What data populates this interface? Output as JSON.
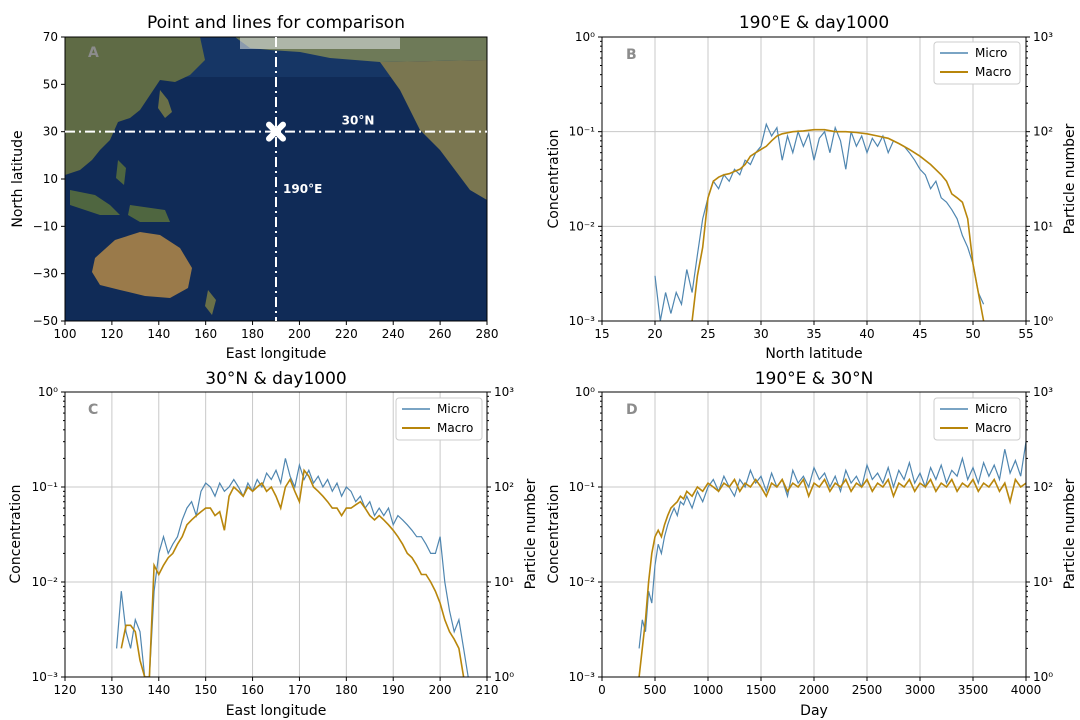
{
  "colors": {
    "micro": "#4f86b0",
    "macro": "#b8860b",
    "grid": "#c8c8c8",
    "panel_letter": "#8c8c8c",
    "ocean": "#0f2a55",
    "land": "#8a7a52"
  },
  "chart_data": [
    {
      "id": "A",
      "type": "map",
      "title": "Point and lines for comparison",
      "panel_letter": "A",
      "xlabel": "East longitude",
      "ylabel": "North latitude",
      "xlim": [
        100,
        280
      ],
      "ylim": [
        -50,
        70
      ],
      "xticks": [
        100,
        120,
        140,
        160,
        180,
        200,
        220,
        240,
        260,
        280
      ],
      "yticks": [
        -50,
        -30,
        -10,
        10,
        30,
        50,
        70
      ],
      "ytick_labels": [
        "−50",
        "−30",
        "−10",
        "10",
        "30",
        "50",
        "70"
      ],
      "vertical_line_lon": 190,
      "horizontal_line_lat": 30,
      "marker": [
        190,
        30
      ],
      "annotations": [
        {
          "text": "30°N",
          "lon": 218,
          "lat": 33
        },
        {
          "text": "190°E",
          "lon": 193,
          "lat": 4
        }
      ]
    },
    {
      "id": "B",
      "type": "line",
      "title": "190°E & day1000",
      "panel_letter": "B",
      "xlabel": "North latitude",
      "ylabel": "Concentration",
      "ylabel_right": "Particle number",
      "xlim": [
        15,
        55
      ],
      "xticks": [
        15,
        20,
        25,
        30,
        35,
        40,
        45,
        50,
        55
      ],
      "ylim": [
        0.001,
        1
      ],
      "yscale": "log",
      "left_tick_labels": [
        "10⁻³",
        "10⁻²",
        "10⁻¹",
        "10⁰"
      ],
      "right_tick_labels": [
        "10⁰",
        "10¹",
        "10²",
        "10³"
      ],
      "legend": [
        "Micro",
        "Macro"
      ],
      "legend_position": "top-right",
      "grid": true,
      "series": [
        {
          "name": "Micro",
          "x": [
            20,
            20.5,
            21,
            21.5,
            22,
            22.5,
            23,
            23.5,
            24,
            24.5,
            25,
            25.5,
            26,
            26.5,
            27,
            27.5,
            28,
            28.5,
            29,
            29.5,
            30,
            30.5,
            31,
            31.5,
            32,
            32.5,
            33,
            33.5,
            34,
            34.5,
            35,
            35.5,
            36,
            36.5,
            37,
            37.5,
            38,
            38.5,
            39,
            39.5,
            40,
            40.5,
            41,
            41.5,
            42,
            42.5,
            43,
            43.5,
            44,
            44.5,
            45,
            45.5,
            46,
            46.5,
            47,
            47.5,
            48,
            48.5,
            49,
            49.5,
            50,
            50.5,
            51
          ],
          "y": [
            0.003,
            0.001,
            0.002,
            0.0012,
            0.002,
            0.0015,
            0.0035,
            0.002,
            0.005,
            0.012,
            0.02,
            0.03,
            0.025,
            0.035,
            0.03,
            0.04,
            0.035,
            0.05,
            0.045,
            0.06,
            0.07,
            0.12,
            0.09,
            0.11,
            0.05,
            0.09,
            0.06,
            0.1,
            0.07,
            0.095,
            0.05,
            0.085,
            0.1,
            0.06,
            0.11,
            0.08,
            0.04,
            0.1,
            0.07,
            0.09,
            0.06,
            0.085,
            0.07,
            0.09,
            0.06,
            0.08,
            0.075,
            0.07,
            0.06,
            0.05,
            0.04,
            0.035,
            0.025,
            0.03,
            0.02,
            0.018,
            0.015,
            0.012,
            0.008,
            0.006,
            0.004,
            0.002,
            0.0015
          ]
        },
        {
          "name": "Macro",
          "x": [
            23.5,
            24,
            24.5,
            25,
            25.5,
            26,
            26.5,
            27,
            27.5,
            28,
            28.5,
            29,
            29.5,
            30,
            30.5,
            31,
            31.5,
            32,
            33,
            34,
            35,
            36,
            37,
            38,
            39,
            40,
            41,
            42,
            43,
            44,
            45,
            46,
            47,
            47.5,
            48,
            48.5,
            49,
            49.5,
            50,
            50.5,
            51
          ],
          "y": [
            0.001,
            0.003,
            0.006,
            0.02,
            0.03,
            0.033,
            0.035,
            0.036,
            0.038,
            0.04,
            0.045,
            0.055,
            0.06,
            0.065,
            0.07,
            0.08,
            0.09,
            0.095,
            0.1,
            0.102,
            0.105,
            0.105,
            0.1,
            0.1,
            0.098,
            0.095,
            0.09,
            0.085,
            0.075,
            0.065,
            0.055,
            0.045,
            0.035,
            0.03,
            0.022,
            0.02,
            0.018,
            0.012,
            0.004,
            0.002,
            0.001
          ]
        }
      ]
    },
    {
      "id": "C",
      "type": "line",
      "title": "30°N & day1000",
      "panel_letter": "C",
      "xlabel": "East longitude",
      "ylabel": "Concentration",
      "ylabel_right": "Particle number",
      "xlim": [
        120,
        210
      ],
      "xticks": [
        120,
        130,
        140,
        150,
        160,
        170,
        180,
        190,
        200,
        210
      ],
      "ylim": [
        0.001,
        1
      ],
      "yscale": "log",
      "left_tick_labels": [
        "10⁻³",
        "10⁻²",
        "10⁻¹",
        "10⁰"
      ],
      "right_tick_labels": [
        "10⁰",
        "10¹",
        "10²",
        "10³"
      ],
      "legend": [
        "Micro",
        "Macro"
      ],
      "legend_position": "top-right",
      "grid": true,
      "series": [
        {
          "name": "Micro",
          "x": [
            131,
            132,
            133,
            134,
            135,
            136,
            137,
            138,
            139,
            140,
            141,
            142,
            143,
            144,
            145,
            146,
            147,
            148,
            149,
            150,
            151,
            152,
            153,
            154,
            155,
            156,
            157,
            158,
            159,
            160,
            161,
            162,
            163,
            164,
            165,
            166,
            167,
            168,
            169,
            170,
            171,
            172,
            173,
            174,
            175,
            176,
            177,
            178,
            179,
            180,
            181,
            182,
            183,
            184,
            185,
            186,
            187,
            188,
            189,
            190,
            191,
            192,
            193,
            194,
            195,
            196,
            197,
            198,
            199,
            200,
            201,
            202,
            203,
            204,
            205,
            206
          ],
          "y": [
            0.002,
            0.008,
            0.003,
            0.002,
            0.004,
            0.003,
            0.001,
            0.001,
            0.008,
            0.02,
            0.03,
            0.02,
            0.025,
            0.03,
            0.045,
            0.06,
            0.07,
            0.05,
            0.09,
            0.11,
            0.1,
            0.08,
            0.11,
            0.09,
            0.1,
            0.12,
            0.1,
            0.08,
            0.11,
            0.09,
            0.12,
            0.1,
            0.14,
            0.12,
            0.15,
            0.11,
            0.2,
            0.13,
            0.1,
            0.17,
            0.12,
            0.15,
            0.11,
            0.13,
            0.1,
            0.12,
            0.09,
            0.11,
            0.08,
            0.1,
            0.09,
            0.07,
            0.08,
            0.06,
            0.07,
            0.05,
            0.06,
            0.05,
            0.06,
            0.04,
            0.05,
            0.045,
            0.04,
            0.035,
            0.03,
            0.03,
            0.025,
            0.02,
            0.02,
            0.03,
            0.01,
            0.005,
            0.003,
            0.004,
            0.002,
            0.001
          ]
        },
        {
          "name": "Macro",
          "x": [
            132,
            133,
            134,
            135,
            136,
            137,
            138,
            139,
            140,
            141,
            142,
            143,
            144,
            145,
            146,
            147,
            148,
            149,
            150,
            151,
            152,
            153,
            154,
            155,
            156,
            157,
            158,
            159,
            160,
            161,
            162,
            163,
            164,
            165,
            166,
            167,
            168,
            169,
            170,
            171,
            172,
            173,
            174,
            175,
            176,
            177,
            178,
            179,
            180,
            181,
            182,
            183,
            184,
            185,
            186,
            187,
            188,
            189,
            190,
            191,
            192,
            193,
            194,
            195,
            196,
            197,
            198,
            199,
            200,
            201,
            202,
            203,
            204,
            205
          ],
          "y": [
            0.002,
            0.0035,
            0.0035,
            0.003,
            0.0015,
            0.001,
            0.001,
            0.015,
            0.012,
            0.015,
            0.018,
            0.02,
            0.025,
            0.03,
            0.04,
            0.045,
            0.05,
            0.055,
            0.06,
            0.06,
            0.05,
            0.055,
            0.035,
            0.08,
            0.1,
            0.09,
            0.08,
            0.1,
            0.09,
            0.1,
            0.11,
            0.09,
            0.1,
            0.08,
            0.06,
            0.1,
            0.12,
            0.09,
            0.07,
            0.15,
            0.13,
            0.1,
            0.09,
            0.08,
            0.07,
            0.06,
            0.06,
            0.05,
            0.06,
            0.06,
            0.065,
            0.07,
            0.06,
            0.05,
            0.045,
            0.05,
            0.045,
            0.04,
            0.035,
            0.03,
            0.025,
            0.02,
            0.018,
            0.015,
            0.012,
            0.012,
            0.01,
            0.008,
            0.006,
            0.004,
            0.003,
            0.0025,
            0.002,
            0.001
          ]
        }
      ]
    },
    {
      "id": "D",
      "type": "line",
      "title": "190°E & 30°N",
      "panel_letter": "D",
      "xlabel": "Day",
      "ylabel": "Concentration",
      "ylabel_right": "Particle number",
      "xlim": [
        0,
        4000
      ],
      "xticks": [
        0,
        500,
        1000,
        1500,
        2000,
        2500,
        3000,
        3500,
        4000
      ],
      "ylim": [
        0.001,
        1
      ],
      "yscale": "log",
      "left_tick_labels": [
        "10⁻³",
        "10⁻²",
        "10⁻¹",
        "10⁰"
      ],
      "right_tick_labels": [
        "10⁰",
        "10¹",
        "10²",
        "10³"
      ],
      "legend": [
        "Micro",
        "Macro"
      ],
      "legend_position": "top-right",
      "grid": true,
      "series": [
        {
          "name": "Micro",
          "x": [
            350,
            380,
            410,
            440,
            470,
            500,
            530,
            560,
            590,
            620,
            650,
            680,
            710,
            740,
            770,
            800,
            850,
            900,
            950,
            1000,
            1050,
            1100,
            1150,
            1200,
            1250,
            1300,
            1350,
            1400,
            1450,
            1500,
            1550,
            1600,
            1650,
            1700,
            1750,
            1800,
            1850,
            1900,
            1950,
            2000,
            2050,
            2100,
            2150,
            2200,
            2250,
            2300,
            2350,
            2400,
            2450,
            2500,
            2550,
            2600,
            2650,
            2700,
            2750,
            2800,
            2850,
            2900,
            2950,
            3000,
            3050,
            3100,
            3150,
            3200,
            3250,
            3300,
            3350,
            3400,
            3450,
            3500,
            3550,
            3600,
            3650,
            3700,
            3750,
            3800,
            3850,
            3900,
            3950,
            4000
          ],
          "y": [
            0.002,
            0.004,
            0.003,
            0.008,
            0.006,
            0.015,
            0.025,
            0.02,
            0.03,
            0.04,
            0.05,
            0.06,
            0.05,
            0.07,
            0.065,
            0.08,
            0.06,
            0.09,
            0.07,
            0.1,
            0.12,
            0.09,
            0.13,
            0.1,
            0.08,
            0.12,
            0.1,
            0.15,
            0.11,
            0.13,
            0.09,
            0.14,
            0.1,
            0.12,
            0.08,
            0.15,
            0.11,
            0.13,
            0.1,
            0.16,
            0.12,
            0.14,
            0.1,
            0.13,
            0.09,
            0.15,
            0.11,
            0.13,
            0.1,
            0.17,
            0.12,
            0.14,
            0.11,
            0.16,
            0.1,
            0.15,
            0.12,
            0.18,
            0.11,
            0.14,
            0.1,
            0.16,
            0.12,
            0.17,
            0.11,
            0.15,
            0.13,
            0.2,
            0.12,
            0.16,
            0.11,
            0.18,
            0.13,
            0.17,
            0.12,
            0.25,
            0.14,
            0.19,
            0.13,
            0.3
          ]
        },
        {
          "name": "Macro",
          "x": [
            350,
            380,
            410,
            440,
            470,
            500,
            530,
            560,
            590,
            620,
            650,
            680,
            710,
            740,
            770,
            800,
            850,
            900,
            950,
            1000,
            1050,
            1100,
            1150,
            1200,
            1250,
            1300,
            1350,
            1400,
            1450,
            1500,
            1550,
            1600,
            1650,
            1700,
            1750,
            1800,
            1850,
            1900,
            1950,
            2000,
            2050,
            2100,
            2150,
            2200,
            2250,
            2300,
            2350,
            2400,
            2450,
            2500,
            2550,
            2600,
            2650,
            2700,
            2750,
            2800,
            2850,
            2900,
            2950,
            3000,
            3050,
            3100,
            3150,
            3200,
            3250,
            3300,
            3350,
            3400,
            3450,
            3500,
            3550,
            3600,
            3650,
            3700,
            3750,
            3800,
            3850,
            3900,
            3950,
            4000
          ],
          "y": [
            0.001,
            0.002,
            0.004,
            0.01,
            0.02,
            0.03,
            0.035,
            0.03,
            0.04,
            0.05,
            0.06,
            0.065,
            0.07,
            0.08,
            0.075,
            0.09,
            0.08,
            0.1,
            0.09,
            0.11,
            0.1,
            0.09,
            0.11,
            0.1,
            0.12,
            0.09,
            0.11,
            0.1,
            0.12,
            0.1,
            0.08,
            0.11,
            0.1,
            0.12,
            0.09,
            0.11,
            0.1,
            0.12,
            0.08,
            0.11,
            0.1,
            0.12,
            0.09,
            0.11,
            0.1,
            0.12,
            0.09,
            0.11,
            0.1,
            0.12,
            0.09,
            0.11,
            0.1,
            0.12,
            0.08,
            0.11,
            0.1,
            0.12,
            0.09,
            0.11,
            0.1,
            0.12,
            0.09,
            0.11,
            0.1,
            0.12,
            0.09,
            0.11,
            0.1,
            0.12,
            0.09,
            0.11,
            0.1,
            0.12,
            0.09,
            0.11,
            0.07,
            0.12,
            0.1,
            0.11
          ]
        }
      ]
    }
  ]
}
